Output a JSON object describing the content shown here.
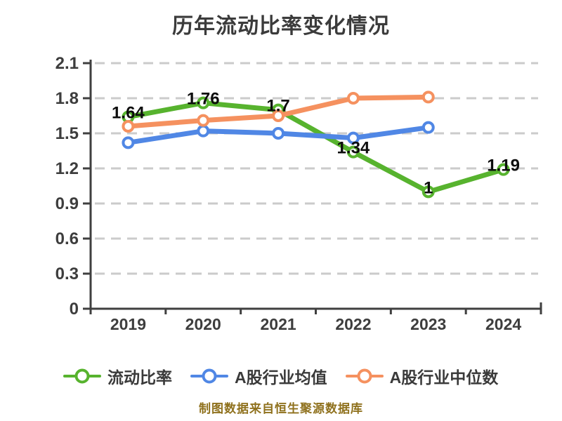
{
  "title": "历年流动比率变化情况",
  "footer_note": "制图数据来自恒生聚源数据库",
  "chart_data": {
    "type": "line",
    "title": "历年流动比率变化情况",
    "categories": [
      "2019",
      "2020",
      "2021",
      "2022",
      "2023",
      "2024"
    ],
    "series": [
      {
        "name": "流动比率",
        "color": "#57b32e",
        "values": [
          1.64,
          1.76,
          1.7,
          1.34,
          1,
          1.19
        ],
        "point_labels": [
          "1.64",
          "1.76",
          "1.7",
          "1.34",
          "1",
          "1.19"
        ]
      },
      {
        "name": "A股行业均值",
        "color": "#5087e5",
        "values": [
          1.42,
          1.52,
          1.5,
          1.46,
          1.55
        ]
      },
      {
        "name": "A股行业中位数",
        "color": "#f5915f",
        "values": [
          1.56,
          1.61,
          1.65,
          1.8,
          1.81
        ]
      }
    ],
    "ylim": [
      0,
      2.1
    ],
    "ytick_labels": [
      "0",
      "0.3",
      "0.6",
      "0.9",
      "1.2",
      "1.5",
      "1.8",
      "2.1"
    ],
    "xlabel": "",
    "ylabel": "",
    "grid": "horizontal-dashed",
    "legend_position": "bottom",
    "marker": "circle-white-fill",
    "axis_color": "#3f3f3f",
    "grid_color": "#cbcbcb",
    "tick_label_color": "#3d3d3d",
    "data_label_color": "#0d0d0d",
    "source_note_color": "#8f711d"
  }
}
